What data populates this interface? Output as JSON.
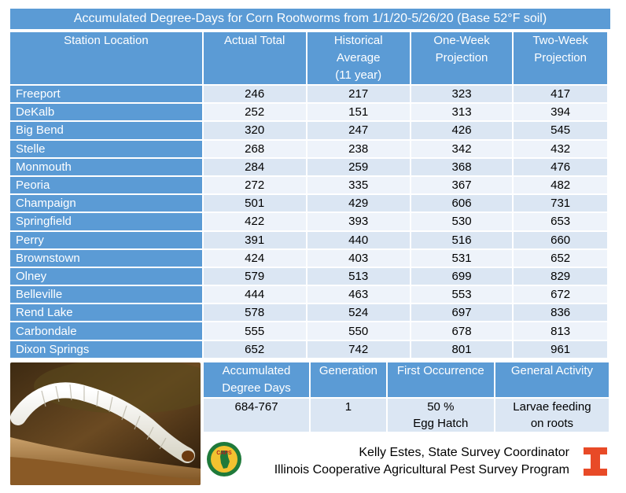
{
  "title": "Accumulated Degree-Days for Corn Rootworms from 1/1/20-5/26/20 (Base 52°F soil)",
  "headers": {
    "station": "Station Location",
    "actual": "Actual Total",
    "historical_1": "Historical",
    "historical_2": "Average",
    "historical_3": "(11 year)",
    "one_week_1": "One-Week",
    "one_week_2": "Projection",
    "two_week_1": "Two-Week",
    "two_week_2": "Projection"
  },
  "rows": [
    {
      "station": "Freeport",
      "actual": "246",
      "historical": "217",
      "one_week": "323",
      "two_week": "417"
    },
    {
      "station": "DeKalb",
      "actual": "252",
      "historical": "151",
      "one_week": "313",
      "two_week": "394"
    },
    {
      "station": "Big Bend",
      "actual": "320",
      "historical": "247",
      "one_week": "426",
      "two_week": "545"
    },
    {
      "station": "Stelle",
      "actual": "268",
      "historical": "238",
      "one_week": "342",
      "two_week": "432"
    },
    {
      "station": "Monmouth",
      "actual": "284",
      "historical": "259",
      "one_week": "368",
      "two_week": "476"
    },
    {
      "station": "Peoria",
      "actual": "272",
      "historical": "335",
      "one_week": "367",
      "two_week": "482"
    },
    {
      "station": "Champaign",
      "actual": "501",
      "historical": "429",
      "one_week": "606",
      "two_week": "731"
    },
    {
      "station": "Springfield",
      "actual": "422",
      "historical": "393",
      "one_week": "530",
      "two_week": "653"
    },
    {
      "station": "Perry",
      "actual": "391",
      "historical": "440",
      "one_week": "516",
      "two_week": "660"
    },
    {
      "station": "Brownstown",
      "actual": "424",
      "historical": "403",
      "one_week": "531",
      "two_week": "652"
    },
    {
      "station": "Olney",
      "actual": "579",
      "historical": "513",
      "one_week": "699",
      "two_week": "829"
    },
    {
      "station": "Belleville",
      "actual": "444",
      "historical": "463",
      "one_week": "553",
      "two_week": "672"
    },
    {
      "station": "Rend Lake",
      "actual": "578",
      "historical": "524",
      "one_week": "697",
      "two_week": "836"
    },
    {
      "station": "Carbondale",
      "actual": "555",
      "historical": "550",
      "one_week": "678",
      "two_week": "813"
    },
    {
      "station": "Dixon Springs",
      "actual": "652",
      "historical": "742",
      "one_week": "801",
      "two_week": "961"
    }
  ],
  "info": {
    "headers": {
      "accumulated_1": "Accumulated",
      "accumulated_2": "Degree Days",
      "generation": "Generation",
      "first_occurrence": "First Occurrence",
      "general_activity": "General Activity"
    },
    "values": {
      "accumulated": "684-767",
      "generation": "1",
      "first_occurrence_1": "50 %",
      "first_occurrence_2": "Egg Hatch",
      "general_activity_1": "Larvae feeding",
      "general_activity_2": "on roots"
    }
  },
  "credit": {
    "line1": "Kelly Estes, State Survey Coordinator",
    "line2": "Illinois Cooperative Agricultural Pest Survey Program"
  },
  "logos": {
    "caps_text": "CAPS",
    "caps_icon": "caps-seal-icon",
    "illinois_icon": "illinois-block-i-icon"
  },
  "colors": {
    "header_blue": "#5b9bd5",
    "row_light": "#eef3fa",
    "row_alt": "#dbe6f3",
    "illinois_orange": "#e84a27"
  }
}
